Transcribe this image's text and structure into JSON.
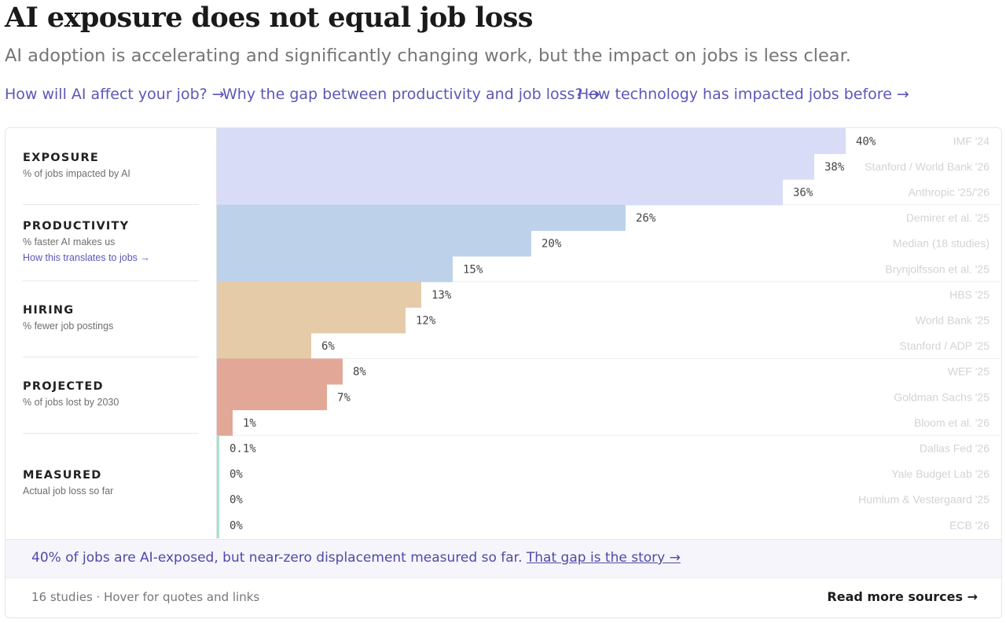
{
  "header": {
    "title": "AI exposure does not equal job loss",
    "subtitle": "AI adoption is accelerating and significantly changing work, but the impact on jobs is less clear."
  },
  "nav_links": [
    {
      "label": "How will AI affect your job? →"
    },
    {
      "label": "Why the gap between productivity and job loss? →"
    },
    {
      "label": "How technology has impacted jobs before →"
    }
  ],
  "chart_data": {
    "type": "bar",
    "orientation": "horizontal",
    "xlim": [
      0,
      40
    ],
    "unit": "%",
    "groups": [
      {
        "name": "EXPOSURE",
        "description": "% of jobs impacted by AI",
        "color": "#d8dcf7",
        "bars": [
          {
            "label": "40%",
            "value": 40,
            "source": "IMF '24"
          },
          {
            "label": "38%",
            "value": 38,
            "source": "Stanford / World Bank '26"
          },
          {
            "label": "36%",
            "value": 36,
            "source": "Anthropic '25/'26"
          }
        ]
      },
      {
        "name": "PRODUCTIVITY",
        "description": "% faster AI makes us",
        "link": "How this translates to jobs →",
        "color": "#bdd1ea",
        "bars": [
          {
            "label": "26%",
            "value": 26,
            "source": "Demirer et al. '25"
          },
          {
            "label": "20%",
            "value": 20,
            "source": "Median (18 studies)"
          },
          {
            "label": "15%",
            "value": 15,
            "source": "Brynjolfsson et al. '25"
          }
        ]
      },
      {
        "name": "HIRING",
        "description": "% fewer job postings",
        "color": "#e5cba8",
        "bars": [
          {
            "label": "13%",
            "value": 13,
            "source": "HBS '25"
          },
          {
            "label": "12%",
            "value": 12,
            "source": "World Bank '25"
          },
          {
            "label": "6%",
            "value": 6,
            "source": "Stanford / ADP '25"
          }
        ]
      },
      {
        "name": "PROJECTED",
        "description": "% of jobs lost by 2030",
        "color": "#e2a797",
        "bars": [
          {
            "label": "8%",
            "value": 8,
            "source": "WEF '25"
          },
          {
            "label": "7%",
            "value": 7,
            "source": "Goldman Sachs '25"
          },
          {
            "label": "1%",
            "value": 1,
            "source": "Bloom et al. '26"
          }
        ]
      },
      {
        "name": "MEASURED",
        "description": "Actual job loss so far",
        "color": "#a8e3c9",
        "bars": [
          {
            "label": "0.1%",
            "value": 0.1,
            "source": "Dallas Fed '26"
          },
          {
            "label": "0%",
            "value": 0,
            "source": "Yale Budget Lab '26"
          },
          {
            "label": "0%",
            "value": 0,
            "source": "Humlum & Vestergaard '25"
          },
          {
            "label": "0%",
            "value": 0,
            "source": "ECB '26"
          }
        ]
      }
    ]
  },
  "banner": {
    "text": "40% of jobs are AI-exposed, but near-zero displacement measured so far. ",
    "link": "That gap is the story →"
  },
  "footer": {
    "left": "16 studies · Hover for quotes and links",
    "right": "Read more sources →"
  }
}
